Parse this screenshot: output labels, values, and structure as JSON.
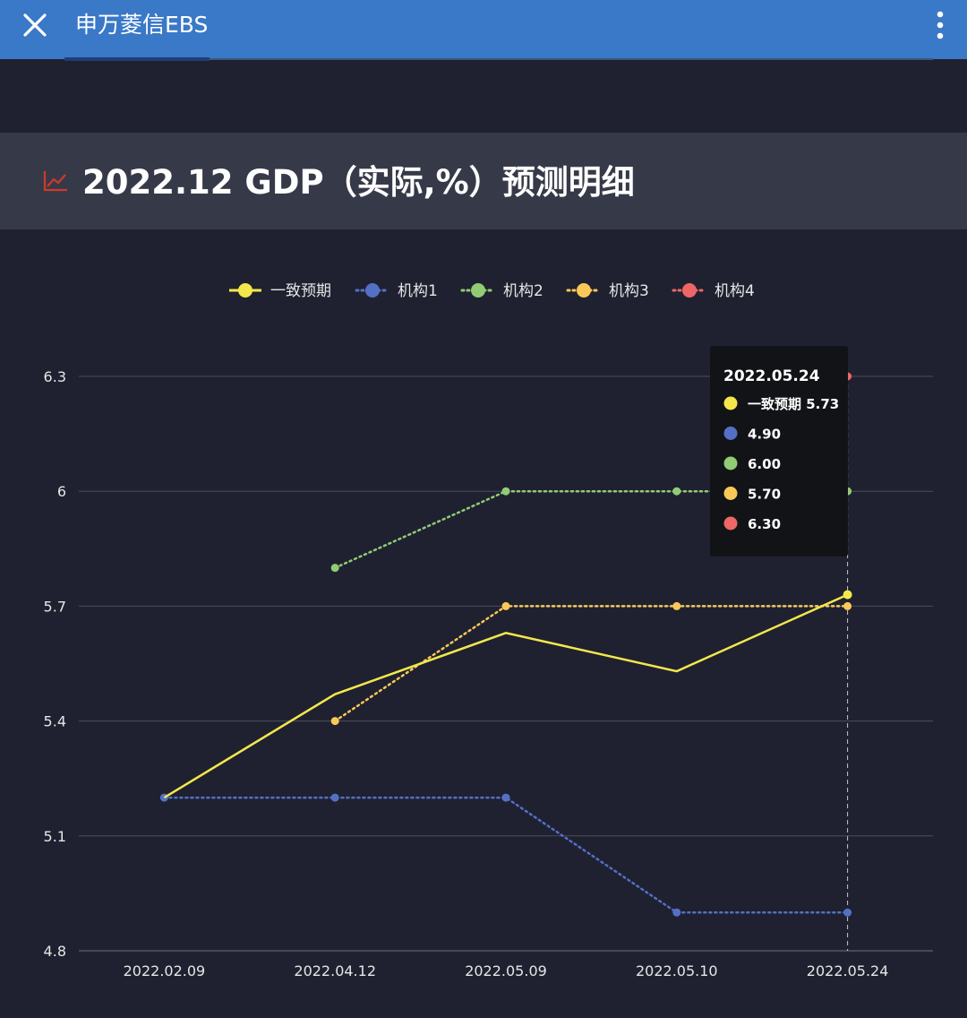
{
  "appbar": {
    "title": "申万菱信EBS",
    "close_icon": "close-icon",
    "menu_icon": "more-vertical-icon"
  },
  "colors": {
    "appbar": "#3a78c8",
    "background": "#1f2130",
    "title_bar": "#363a48",
    "trend_icon": "#d0392c",
    "grid": "#4a4d5a",
    "tooltip_bg": "#121317"
  },
  "title_bar": {
    "icon": "line-chart-icon",
    "title": "2022.12 GDP（实际,%）预测明细"
  },
  "chart_data": {
    "type": "line",
    "title": "2022.12 GDP（实际,%）预测明细",
    "xlabel": "",
    "ylabel": "",
    "categories": [
      "2022.02.09",
      "2022.04.12",
      "2022.05.09",
      "2022.05.10",
      "2022.05.24"
    ],
    "ylim": [
      4.8,
      6.3
    ],
    "yticks": [
      "4.8",
      "5.1",
      "5.4",
      "5.7",
      "6",
      "6.3"
    ],
    "grid": true,
    "legend_position": "top",
    "series": [
      {
        "name": "一致预期",
        "color": "#f4e74c",
        "style": "solid",
        "values": [
          5.2,
          5.47,
          5.63,
          5.53,
          5.73
        ]
      },
      {
        "name": "机构1",
        "color": "#5470c6",
        "style": "dotted",
        "values": [
          5.2,
          5.2,
          5.2,
          4.9,
          4.9
        ]
      },
      {
        "name": "机构2",
        "color": "#91cc75",
        "style": "dotted",
        "values": [
          null,
          5.8,
          6.0,
          6.0,
          6.0
        ]
      },
      {
        "name": "机构3",
        "color": "#fac858",
        "style": "dotted",
        "values": [
          null,
          5.4,
          5.7,
          5.7,
          5.7
        ]
      },
      {
        "name": "机构4",
        "color": "#ee6666",
        "style": "dotted",
        "values": [
          null,
          null,
          null,
          null,
          6.3
        ]
      }
    ],
    "tooltip": {
      "category": "2022.05.24",
      "rows": [
        {
          "label": "一致预期 5.73",
          "color": "#f4e74c"
        },
        {
          "label": "4.90",
          "color": "#5470c6"
        },
        {
          "label": "6.00",
          "color": "#91cc75"
        },
        {
          "label": "5.70",
          "color": "#fac858"
        },
        {
          "label": "6.30",
          "color": "#ee6666"
        }
      ]
    }
  }
}
